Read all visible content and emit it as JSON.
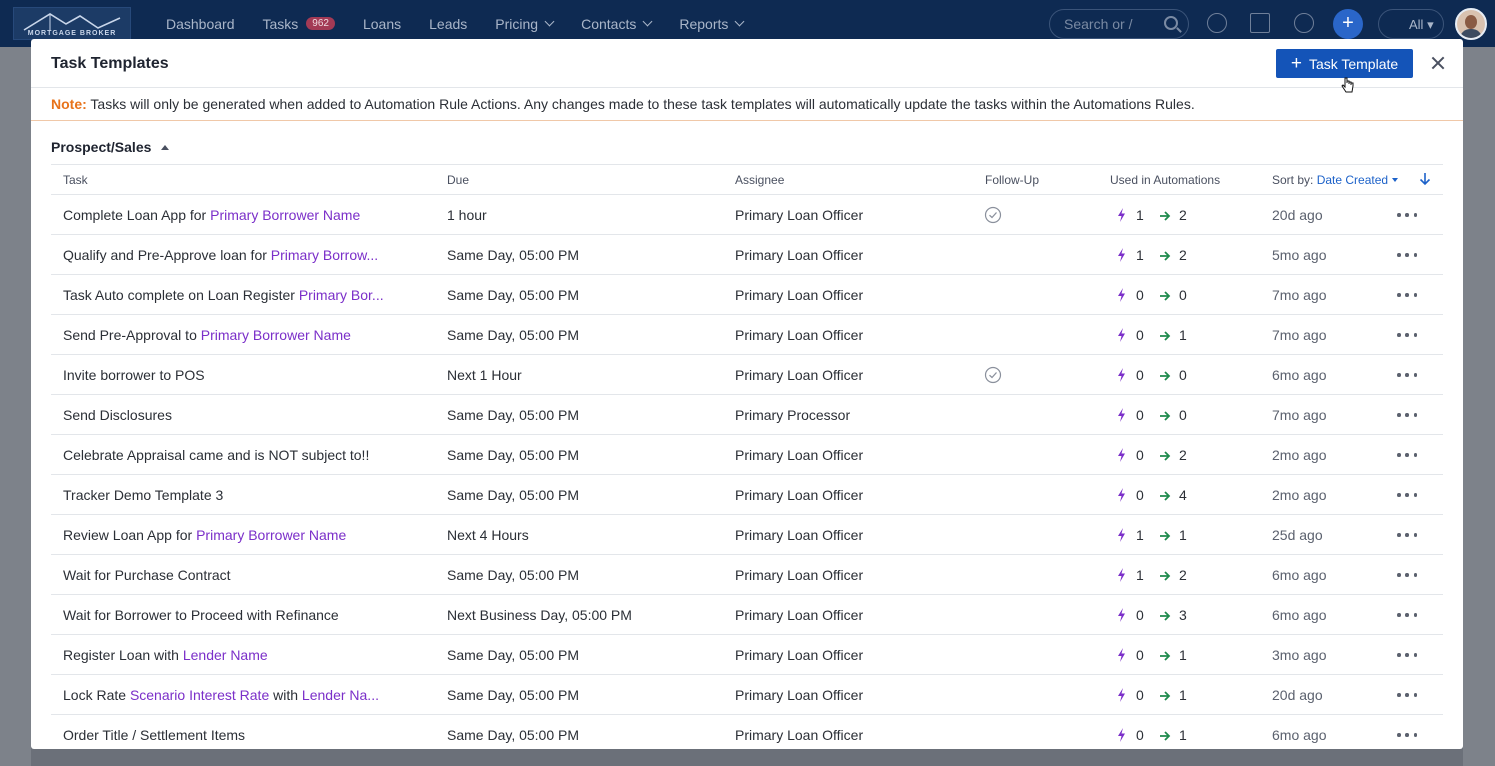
{
  "nav": {
    "logo_text": "MORTGAGE BROKER",
    "items": [
      {
        "label": "Dashboard"
      },
      {
        "label": "Tasks",
        "badge": "962"
      },
      {
        "label": "Loans"
      },
      {
        "label": "Leads"
      },
      {
        "label": "Pricing",
        "dropdown": true
      },
      {
        "label": "Contacts",
        "dropdown": true
      },
      {
        "label": "Reports",
        "dropdown": true
      }
    ],
    "search_placeholder": "Search or /",
    "all_label": "All"
  },
  "modal": {
    "title": "Task Templates",
    "add_button_label": "Task Template",
    "note_label": "Note:",
    "note_text": " Tasks will only be generated when added to Automation Rule Actions. Any changes made to these task templates will automatically update the tasks within the Automations Rules.",
    "section_title": "Prospect/Sales"
  },
  "table": {
    "columns": {
      "task": "Task",
      "due": "Due",
      "assignee": "Assignee",
      "followup": "Follow-Up",
      "used": "Used in Automations",
      "sort_by": "Sort by:",
      "sort_value": "Date Created"
    },
    "rows": [
      {
        "task": [
          {
            "t": "Complete Loan App for "
          },
          {
            "t": "Primary Borrower Name",
            "h": true
          }
        ],
        "due": "1 hour",
        "assignee": "Primary Loan Officer",
        "followup": true,
        "bolt": "1",
        "arrow": "2",
        "created": "20d ago"
      },
      {
        "task": [
          {
            "t": "Qualify and Pre-Approve loan for "
          },
          {
            "t": "Primary Borrow...",
            "h": true
          }
        ],
        "due": "Same Day, 05:00 PM",
        "assignee": "Primary Loan Officer",
        "followup": false,
        "bolt": "1",
        "arrow": "2",
        "created": "5mo ago"
      },
      {
        "task": [
          {
            "t": "Task Auto complete on Loan Register "
          },
          {
            "t": "Primary Bor...",
            "h": true
          }
        ],
        "due": "Same Day, 05:00 PM",
        "assignee": "Primary Loan Officer",
        "followup": false,
        "bolt": "0",
        "arrow": "0",
        "created": "7mo ago"
      },
      {
        "task": [
          {
            "t": "Send Pre-Approval to "
          },
          {
            "t": "Primary Borrower Name",
            "h": true
          }
        ],
        "due": "Same Day, 05:00 PM",
        "assignee": "Primary Loan Officer",
        "followup": false,
        "bolt": "0",
        "arrow": "1",
        "created": "7mo ago"
      },
      {
        "task": [
          {
            "t": "Invite borrower to POS"
          }
        ],
        "due": "Next 1 Hour",
        "assignee": "Primary Loan Officer",
        "followup": true,
        "bolt": "0",
        "arrow": "0",
        "created": "6mo ago"
      },
      {
        "task": [
          {
            "t": "Send Disclosures"
          }
        ],
        "due": "Same Day, 05:00 PM",
        "assignee": "Primary Processor",
        "followup": false,
        "bolt": "0",
        "arrow": "0",
        "created": "7mo ago"
      },
      {
        "task": [
          {
            "t": "Celebrate Appraisal came and is NOT subject to!!"
          }
        ],
        "due": "Same Day, 05:00 PM",
        "assignee": "Primary Loan Officer",
        "followup": false,
        "bolt": "0",
        "arrow": "2",
        "created": "2mo ago"
      },
      {
        "task": [
          {
            "t": "Tracker Demo Template 3"
          }
        ],
        "due": "Same Day, 05:00 PM",
        "assignee": "Primary Loan Officer",
        "followup": false,
        "bolt": "0",
        "arrow": "4",
        "created": "2mo ago"
      },
      {
        "task": [
          {
            "t": "Review Loan App for "
          },
          {
            "t": "Primary Borrower Name",
            "h": true
          }
        ],
        "due": "Next 4 Hours",
        "assignee": "Primary Loan Officer",
        "followup": false,
        "bolt": "1",
        "arrow": "1",
        "created": "25d ago"
      },
      {
        "task": [
          {
            "t": "Wait for Purchase Contract"
          }
        ],
        "due": "Same Day, 05:00 PM",
        "assignee": "Primary Loan Officer",
        "followup": false,
        "bolt": "1",
        "arrow": "2",
        "created": "6mo ago"
      },
      {
        "task": [
          {
            "t": "Wait for Borrower to Proceed with Refinance"
          }
        ],
        "due": "Next Business Day, 05:00 PM",
        "assignee": "Primary Loan Officer",
        "followup": false,
        "bolt": "0",
        "arrow": "3",
        "created": "6mo ago"
      },
      {
        "task": [
          {
            "t": "Register Loan with "
          },
          {
            "t": "Lender Name",
            "h": true
          }
        ],
        "due": "Same Day, 05:00 PM",
        "assignee": "Primary Loan Officer",
        "followup": false,
        "bolt": "0",
        "arrow": "1",
        "created": "3mo ago"
      },
      {
        "task": [
          {
            "t": "Lock Rate "
          },
          {
            "t": "Scenario Interest Rate",
            "h": true
          },
          {
            "t": " with "
          },
          {
            "t": "Lender Na...",
            "h": true
          }
        ],
        "due": "Same Day, 05:00 PM",
        "assignee": "Primary Loan Officer",
        "followup": false,
        "bolt": "0",
        "arrow": "1",
        "created": "20d ago"
      },
      {
        "task": [
          {
            "t": "Order Title / Settlement Items"
          }
        ],
        "due": "Same Day, 05:00 PM",
        "assignee": "Primary Loan Officer",
        "followup": false,
        "bolt": "0",
        "arrow": "1",
        "created": "6mo ago"
      }
    ]
  },
  "colors": {
    "primary": "#1454b8",
    "highlight": "#7b2fc9",
    "note": "#e8731b",
    "bolt": "#7b2fc9",
    "arrow": "#1e8a4c"
  }
}
